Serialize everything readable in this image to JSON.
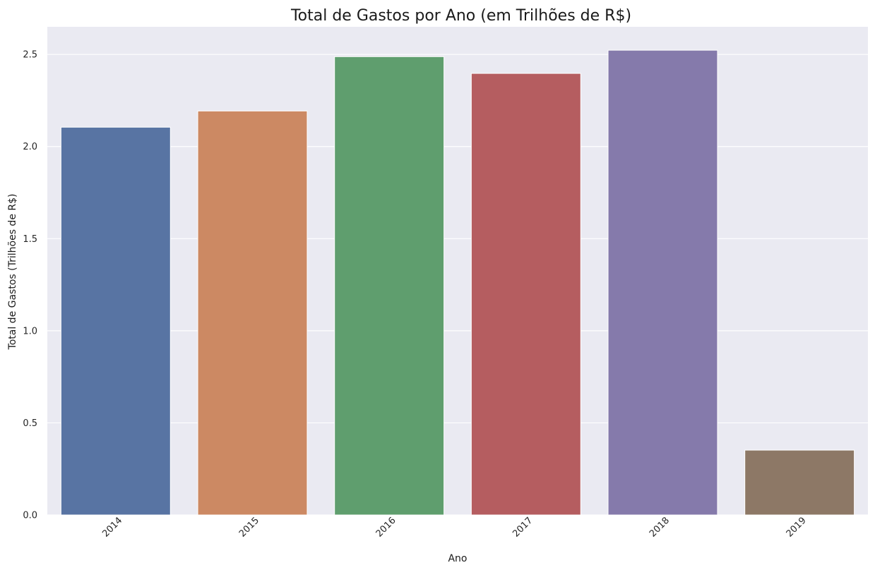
{
  "chart_data": {
    "type": "bar",
    "title": "Total de Gastos por Ano (em Trilhões de R$)",
    "xlabel": "Ano",
    "ylabel": "Total de Gastos (Trilhões de R$)",
    "categories": [
      "2014",
      "2015",
      "2016",
      "2017",
      "2018",
      "2019"
    ],
    "values": [
      2.105,
      2.193,
      2.488,
      2.397,
      2.523,
      0.352
    ],
    "ylim": [
      0,
      2.65
    ],
    "yticks": [
      "0.0",
      "0.5",
      "1.0",
      "1.5",
      "2.0",
      "2.5"
    ],
    "grid": true,
    "legend": "none",
    "x_tick_rotation_deg": 45,
    "colors": [
      "#5874a3",
      "#cc8963",
      "#5f9e6e",
      "#b55d60",
      "#857aab",
      "#8d7866"
    ],
    "background_color": "#eaeaf2"
  }
}
